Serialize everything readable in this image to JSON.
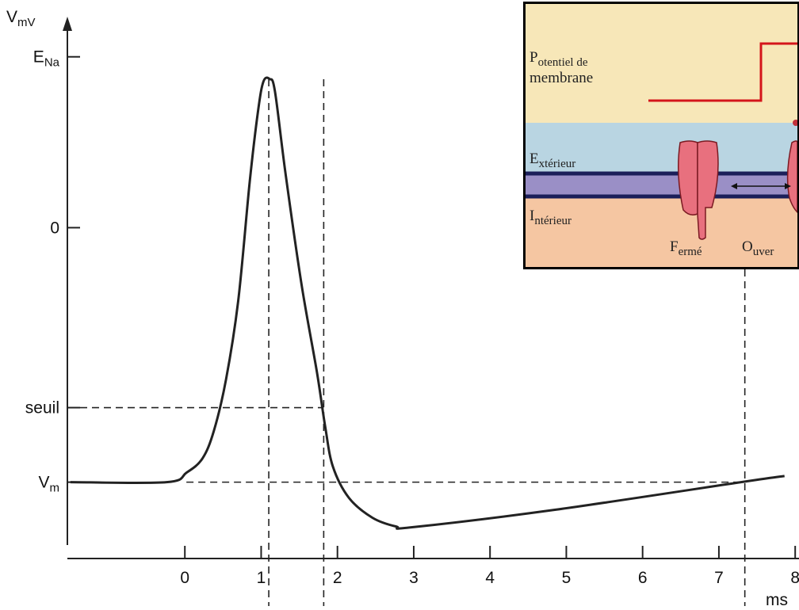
{
  "chart_data": {
    "type": "line",
    "y_label": "VmV",
    "x_label": "ms",
    "x": [
      -1.5,
      -0.24,
      0.02,
      0.23,
      0.38,
      0.54,
      0.7,
      0.85,
      0.96,
      1.03,
      1.11,
      1.18,
      1.32,
      1.53,
      1.73,
      1.84,
      1.94,
      2.15,
      2.46,
      2.77,
      2.98,
      4.85,
      7.29,
      7.86
    ],
    "series": [
      {
        "color": "#222222",
        "values": [
          -70,
          -70,
          -67.4,
          -63.5,
          -55.9,
          -41.7,
          -20,
          12.6,
          32.2,
          40.2,
          40.9,
          37.6,
          14.8,
          -15.7,
          -39.6,
          -54.8,
          -65.7,
          -74.3,
          -79.8,
          -82.2,
          -82.4,
          -77.6,
          -70,
          -68.3
        ]
      }
    ],
    "xlim": [
      -1.54,
      8.05
    ],
    "ylim": [
      -91,
      55
    ],
    "xticks": [
      0,
      1,
      2,
      3,
      4,
      5,
      6,
      7,
      8
    ],
    "yticks": [
      {
        "value": 47,
        "label": "ENa"
      },
      0,
      {
        "value": -49.5,
        "label": "seuil"
      },
      {
        "value": -70,
        "label": "Vm"
      }
    ],
    "vlines": [
      1.1,
      1.82,
      7.34
    ]
  },
  "inset": {
    "membrane_label": [
      "Potentiel de",
      "membrane"
    ],
    "outside": "Extérieur",
    "inside": "Intérieur",
    "closed": "Fermé",
    "open": "Ouver"
  }
}
